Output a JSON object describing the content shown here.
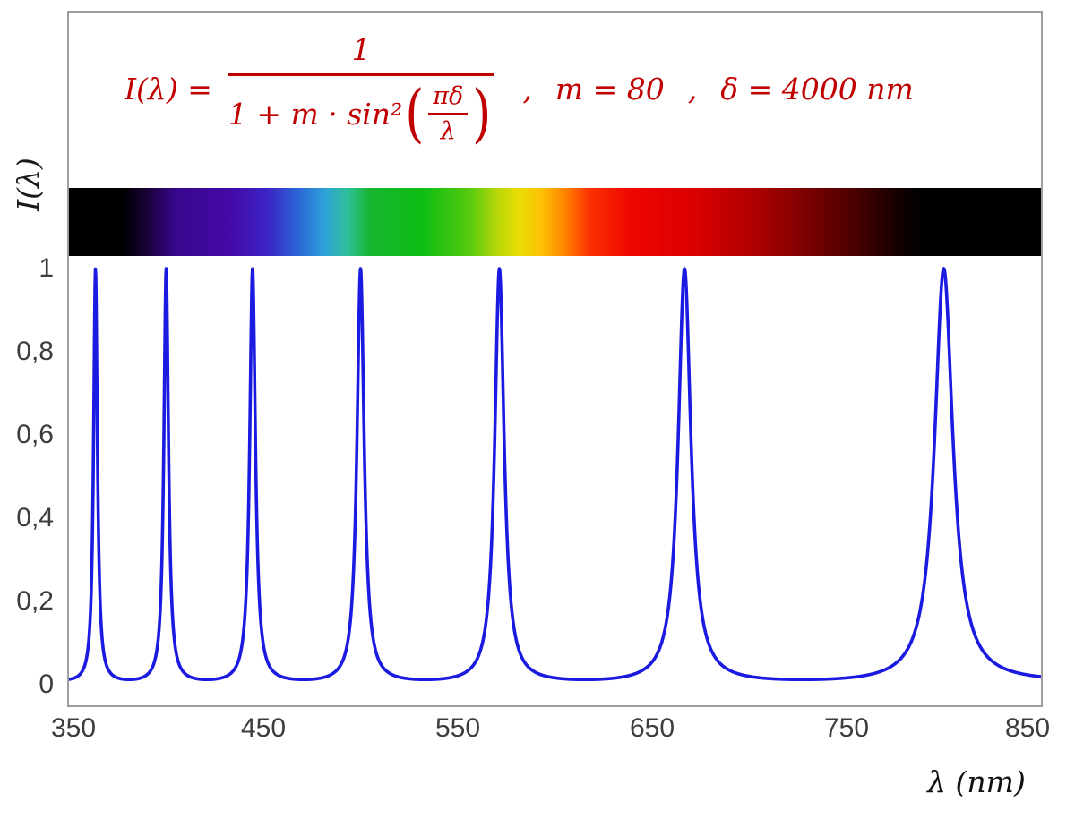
{
  "chart_data": {
    "type": "line",
    "formula_text": "I(λ) = 1 / (1 + m·sin²(πδ/λ))",
    "parameters": {
      "m": 80,
      "delta_nm": 4000
    },
    "xlabel": "λ  (nm)",
    "ylabel": "I(λ)",
    "xlim": [
      350,
      850
    ],
    "ylim": [
      0,
      1
    ],
    "x_ticks": [
      {
        "value": 350,
        "label": "350"
      },
      {
        "value": 450,
        "label": "450"
      },
      {
        "value": 550,
        "label": "550"
      },
      {
        "value": 650,
        "label": "650"
      },
      {
        "value": 750,
        "label": "750"
      },
      {
        "value": 850,
        "label": "850"
      }
    ],
    "y_ticks": [
      {
        "value": 1,
        "label": "1"
      },
      {
        "value": 0.8,
        "label": "0,8"
      },
      {
        "value": 0.6,
        "label": "0,6"
      },
      {
        "value": 0.4,
        "label": "0,4"
      },
      {
        "value": 0.2,
        "label": "0,2"
      },
      {
        "value": 0,
        "label": "0"
      }
    ],
    "peaks_nm": [
      363.64,
      400,
      444.44,
      500,
      571.43,
      666.67,
      800
    ],
    "sample_step_nm": 0.2,
    "curve_color": "#1a1ae0",
    "formula_color": "#c00000",
    "axis_text_color": "#3d3d3d",
    "grid": false,
    "spectrum_bar": {
      "stops": [
        {
          "nm": 350,
          "color": "#000000"
        },
        {
          "nm": 378,
          "color": "#000000"
        },
        {
          "nm": 390,
          "color": "#1a0138"
        },
        {
          "nm": 405,
          "color": "#37078c"
        },
        {
          "nm": 432,
          "color": "#4409a6"
        },
        {
          "nm": 452,
          "color": "#3b23c4"
        },
        {
          "nm": 468,
          "color": "#2b66d6"
        },
        {
          "nm": 481,
          "color": "#2e9fd9"
        },
        {
          "nm": 493,
          "color": "#2ec09b"
        },
        {
          "nm": 505,
          "color": "#17b52e"
        },
        {
          "nm": 532,
          "color": "#0ebd13"
        },
        {
          "nm": 556,
          "color": "#55ca0e"
        },
        {
          "nm": 570,
          "color": "#b5d70a"
        },
        {
          "nm": 581,
          "color": "#e9dc06"
        },
        {
          "nm": 593,
          "color": "#fdc203"
        },
        {
          "nm": 606,
          "color": "#ff7e00"
        },
        {
          "nm": 618,
          "color": "#fb3000"
        },
        {
          "nm": 640,
          "color": "#ee0500"
        },
        {
          "nm": 672,
          "color": "#da0000"
        },
        {
          "nm": 700,
          "color": "#b20000"
        },
        {
          "nm": 728,
          "color": "#7e0000"
        },
        {
          "nm": 756,
          "color": "#470000"
        },
        {
          "nm": 776,
          "color": "#150000"
        },
        {
          "nm": 788,
          "color": "#000000"
        },
        {
          "nm": 850,
          "color": "#000000"
        }
      ]
    }
  },
  "formula_display": {
    "lhs": "I(λ) =",
    "outer_num": "1",
    "den_prefix": "1 + m · sin²",
    "paren_open": "(",
    "paren_close": ")",
    "inner_num": "πδ",
    "inner_den": "λ",
    "sep1": ",",
    "m_eq": "m = 80",
    "sep2": ",",
    "delta_eq": "δ = 4000 nm"
  }
}
